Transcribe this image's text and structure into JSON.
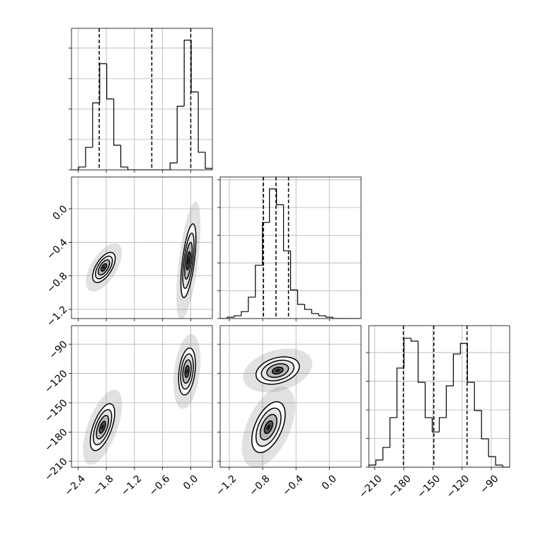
{
  "chart_data": [
    {
      "type": "histogram",
      "grid": true,
      "x_labels": false,
      "y_labels": false,
      "color": "#000000",
      "bins": [
        -2.54,
        -2.39,
        -2.24,
        -2.09,
        -1.94,
        -1.79,
        -1.64,
        -1.49,
        -1.34,
        -1.19,
        -1.04,
        -0.89,
        -0.74,
        -0.59,
        -0.44,
        -0.29,
        -0.14,
        0.01,
        0.16,
        0.31,
        0.46
      ],
      "counts": [
        0,
        95,
        740,
        2200,
        3490,
        2330,
        810,
        95,
        0,
        0,
        0,
        0,
        0,
        0,
        230,
        2090,
        4260,
        2560,
        580,
        50
      ],
      "quantiles": [
        -1.95,
        -0.83,
        0.0
      ],
      "xlim": [
        -2.54,
        0.46
      ],
      "xticks": [
        {
          "value": -2.4,
          "label": "−2.4"
        },
        {
          "value": -1.8,
          "label": "−1.8"
        },
        {
          "value": -1.2,
          "label": "−1.2"
        },
        {
          "value": -0.6,
          "label": "−0.6"
        },
        {
          "value": 0.0,
          "label": "0.0"
        }
      ],
      "ylim": [
        0,
        4650
      ],
      "yticks": [
        0,
        1000,
        2000,
        3000,
        4000
      ]
    },
    {
      "type": "contour",
      "grid": true,
      "x_labels": false,
      "y_labels": true,
      "modes": [
        {
          "x": -1.85,
          "y": -0.7,
          "sx": 0.12,
          "sy": 0.09,
          "corr": 0.6
        },
        {
          "x": -0.05,
          "y": -0.62,
          "sx": 0.08,
          "sy": 0.22,
          "corr": 0.6
        }
      ],
      "xlim": [
        -2.54,
        0.46
      ],
      "xticks": [
        {
          "value": -2.4,
          "label": "−2.4"
        },
        {
          "value": -1.8,
          "label": "−1.8"
        },
        {
          "value": -1.2,
          "label": "−1.2"
        },
        {
          "value": -0.6,
          "label": "−0.6"
        },
        {
          "value": 0.0,
          "label": "0.0"
        }
      ],
      "ylim": [
        -1.31,
        0.38
      ],
      "yticks": [
        {
          "value": -1.2,
          "label": "−1.2"
        },
        {
          "value": -0.8,
          "label": "−0.8"
        },
        {
          "value": -0.4,
          "label": "−0.4"
        },
        {
          "value": 0.0,
          "label": "0.0"
        }
      ]
    },
    {
      "type": "histogram",
      "grid": true,
      "x_labels": false,
      "y_labels": false,
      "color": "#000000",
      "bins": [
        -1.31,
        -1.2255,
        -1.141,
        -1.0565,
        -0.972,
        -0.8875,
        -0.803,
        -0.7185,
        -0.634,
        -0.5495,
        -0.465,
        -0.3805,
        -0.296,
        -0.2115,
        -0.127,
        -0.0425,
        0.042,
        0.1265,
        0.211,
        0.2955,
        0.38
      ],
      "counts": [
        0,
        50,
        100,
        250,
        770,
        1920,
        3460,
        4670,
        4100,
        2440,
        1030,
        510,
        330,
        180,
        100,
        50,
        0,
        0,
        0,
        0
      ],
      "quantiles": [
        -0.79,
        -0.64,
        -0.49
      ],
      "xlim": [
        -1.31,
        0.38
      ],
      "xticks": [
        {
          "value": -1.2,
          "label": "−1.2"
        },
        {
          "value": -0.8,
          "label": "−0.8"
        },
        {
          "value": -0.4,
          "label": "−0.4"
        },
        {
          "value": 0.0,
          "label": "0.0"
        }
      ],
      "ylim": [
        0,
        5100
      ],
      "yticks": [
        0,
        1000,
        2000,
        3000,
        4000,
        5000
      ]
    },
    {
      "type": "contour",
      "grid": true,
      "x_labels": true,
      "y_labels": true,
      "modes": [
        {
          "x": -1.88,
          "y": -175,
          "sx": 0.13,
          "sy": 12,
          "corr": 0.6
        },
        {
          "x": -0.08,
          "y": -118,
          "sx": 0.09,
          "sy": 12,
          "corr": 0.3
        }
      ],
      "xlim": [
        -2.54,
        0.46
      ],
      "xticks": [
        {
          "value": -2.4,
          "label": "−2.4"
        },
        {
          "value": -1.8,
          "label": "−1.8"
        },
        {
          "value": -1.2,
          "label": "−1.2"
        },
        {
          "value": -0.6,
          "label": "−0.6"
        },
        {
          "value": 0.0,
          "label": "0.0"
        }
      ],
      "ylim": [
        -216,
        -71
      ],
      "yticks": [
        {
          "value": -210,
          "label": "−210"
        },
        {
          "value": -180,
          "label": "−180"
        },
        {
          "value": -150,
          "label": "−150"
        },
        {
          "value": -120,
          "label": "−120"
        },
        {
          "value": -90,
          "label": "−90"
        }
      ]
    },
    {
      "type": "contour",
      "grid": true,
      "x_labels": true,
      "y_labels": false,
      "modes": [
        {
          "x": -0.73,
          "y": -175,
          "sx": 0.1,
          "sy": 13,
          "corr": 0.5
        },
        {
          "x": -0.62,
          "y": -117,
          "sx": 0.13,
          "sy": 7,
          "corr": 0.3
        }
      ],
      "xlim": [
        -1.31,
        0.38
      ],
      "xticks": [
        {
          "value": -1.2,
          "label": "−1.2"
        },
        {
          "value": -0.8,
          "label": "−0.8"
        },
        {
          "value": -0.4,
          "label": "−0.4"
        },
        {
          "value": 0.0,
          "label": "0.0"
        }
      ],
      "ylim": [
        -216,
        -71
      ],
      "yticks": [
        {
          "value": -210,
          "label": "−210"
        },
        {
          "value": -180,
          "label": "−180"
        },
        {
          "value": -150,
          "label": "−150"
        },
        {
          "value": -120,
          "label": "−120"
        },
        {
          "value": -90,
          "label": "−90"
        }
      ]
    },
    {
      "type": "histogram",
      "grid": true,
      "x_labels": true,
      "y_labels": false,
      "color": "#000000",
      "bins": [
        -216,
        -208.75,
        -201.5,
        -194.25,
        -187,
        -179.75,
        -172.5,
        -165.25,
        -158,
        -150.75,
        -143.5,
        -136.25,
        -129,
        -121.75,
        -114.5,
        -107.25,
        -100,
        -92.75,
        -85.5,
        -78.25,
        -71
      ],
      "counts": [
        75,
        250,
        690,
        1730,
        3460,
        4500,
        4400,
        2960,
        1730,
        1230,
        1730,
        2840,
        3950,
        4320,
        2960,
        1980,
        990,
        370,
        75,
        0
      ],
      "quantiles": [
        -180.4,
        -149.1,
        -114.9
      ],
      "xlim": [
        -216,
        -71
      ],
      "xticks": [
        {
          "value": -210,
          "label": "−210"
        },
        {
          "value": -180,
          "label": "−180"
        },
        {
          "value": -150,
          "label": "−150"
        },
        {
          "value": -120,
          "label": "−120"
        },
        {
          "value": -90,
          "label": "−90"
        }
      ],
      "ylim": [
        0,
        4940
      ],
      "yticks": [
        0,
        1000,
        2000,
        3000,
        4000
      ]
    }
  ]
}
